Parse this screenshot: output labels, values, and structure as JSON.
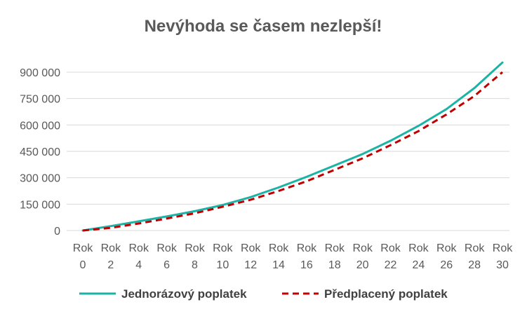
{
  "chart_data": {
    "type": "line",
    "title": "Nevýhoda se časem nezlepší!",
    "xlabel": "",
    "ylabel": "",
    "ylim": [
      0,
      900000
    ],
    "yticks": [
      0,
      150000,
      300000,
      450000,
      600000,
      750000,
      900000
    ],
    "ytick_labels": [
      "0",
      "150 000",
      "300 000",
      "450 000",
      "600 000",
      "750 000",
      "900 000"
    ],
    "x": [
      0,
      2,
      4,
      6,
      8,
      10,
      12,
      14,
      16,
      18,
      20,
      22,
      24,
      26,
      28,
      30
    ],
    "x_tick_labels": [
      [
        "Rok",
        "0"
      ],
      [
        "Rok",
        "2"
      ],
      [
        "Rok",
        "4"
      ],
      [
        "Rok",
        "6"
      ],
      [
        "Rok",
        "8"
      ],
      [
        "Rok",
        "10"
      ],
      [
        "Rok",
        "12"
      ],
      [
        "Rok",
        "14"
      ],
      [
        "Rok",
        "16"
      ],
      [
        "Rok",
        "18"
      ],
      [
        "Rok",
        "20"
      ],
      [
        "Rok",
        "22"
      ],
      [
        "Rok",
        "24"
      ],
      [
        "Rok",
        "26"
      ],
      [
        "Rok",
        "28"
      ],
      [
        "Rok",
        "30"
      ]
    ],
    "grid": true,
    "legend_position": "bottom",
    "series": [
      {
        "name": "Jednorázový poplatek",
        "color": "#1ab3a6",
        "style": "solid",
        "values": [
          0,
          25000,
          52000,
          80000,
          110000,
          145000,
          190000,
          245000,
          305000,
          370000,
          435000,
          510000,
          595000,
          690000,
          810000,
          955000
        ]
      },
      {
        "name": "Předplacený poplatek",
        "color": "#c00000",
        "style": "dashed",
        "values": [
          0,
          15000,
          40000,
          68000,
          98000,
          135000,
          175000,
          225000,
          280000,
          345000,
          410000,
          485000,
          565000,
          660000,
          765000,
          900000
        ]
      }
    ]
  }
}
